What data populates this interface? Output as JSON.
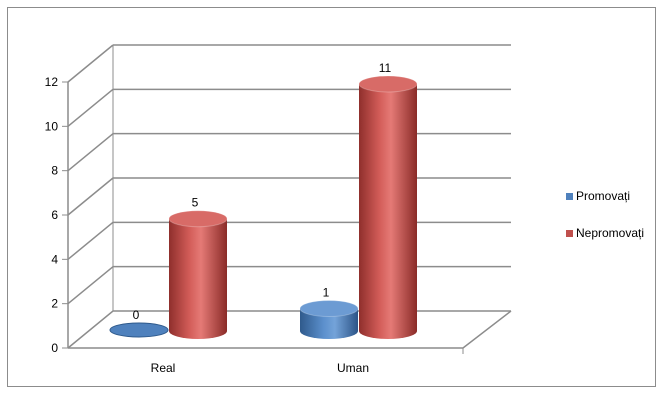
{
  "chart_data": {
    "type": "bar",
    "style": "3d-cylinder",
    "categories": [
      "Real",
      "Uman"
    ],
    "series": [
      {
        "name": "Promovați",
        "values": [
          0,
          1
        ],
        "color": "#4f81bd"
      },
      {
        "name": "Nepromovați",
        "values": [
          5,
          11
        ],
        "color": "#c0504d"
      }
    ],
    "ylim": [
      0,
      12
    ],
    "yticks": [
      0,
      2,
      4,
      6,
      8,
      10,
      12
    ],
    "grid": true,
    "legend": "right"
  }
}
